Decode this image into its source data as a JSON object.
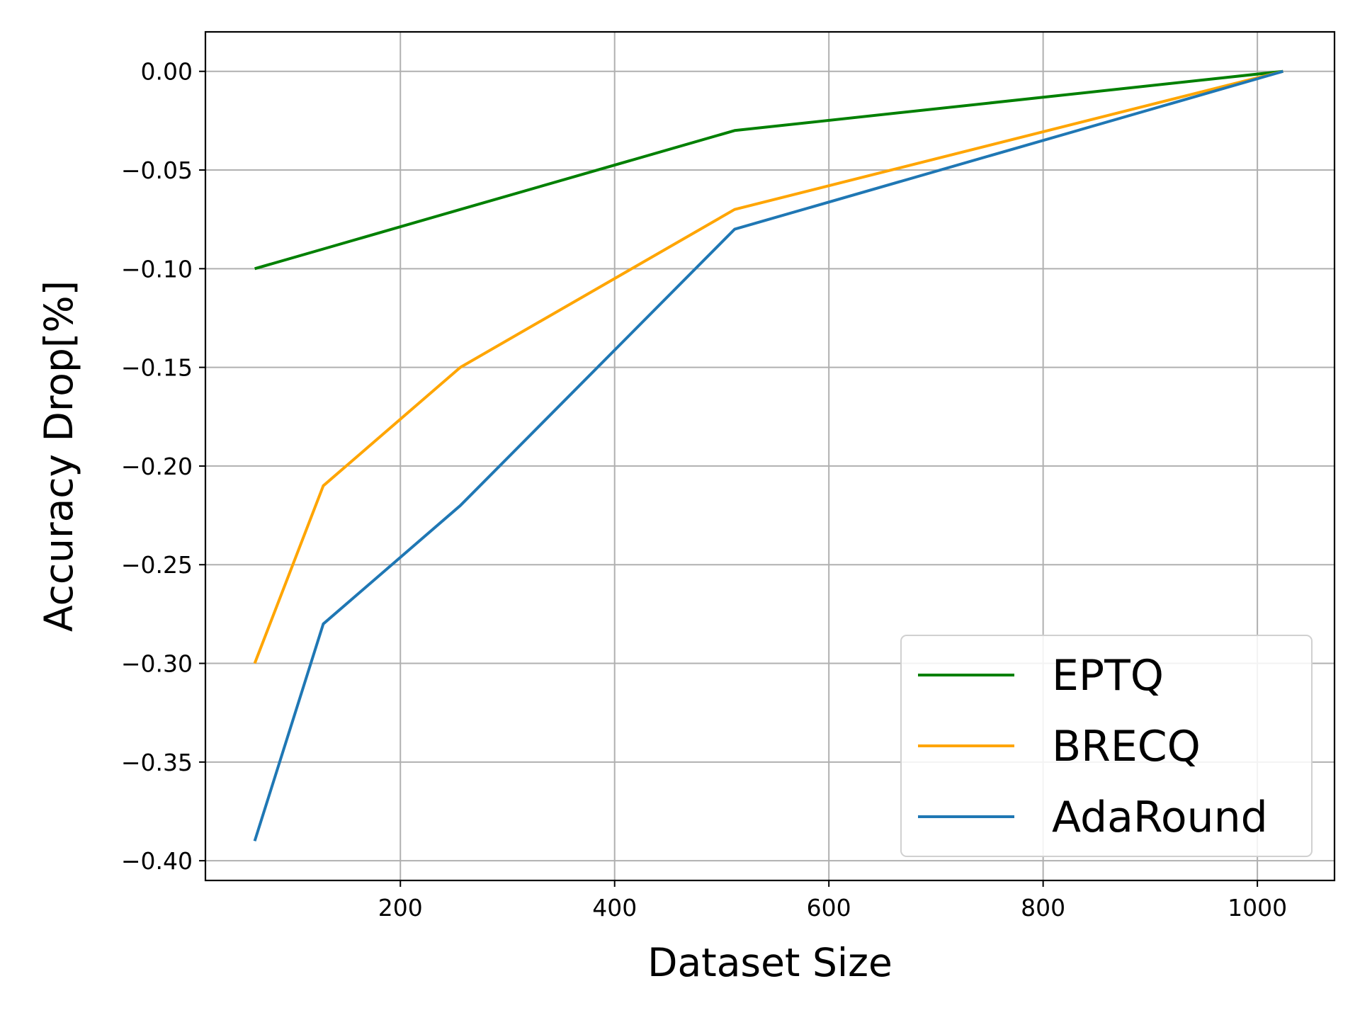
{
  "chart_data": {
    "type": "line",
    "title": "",
    "xlabel": "Dataset Size",
    "ylabel": "Accuracy Drop[%]",
    "xlim": [
      18,
      1072
    ],
    "ylim": [
      -0.41,
      0.02
    ],
    "xticks": [
      200,
      400,
      600,
      800,
      1000
    ],
    "xtick_labels": [
      "200",
      "400",
      "600",
      "800",
      "1000"
    ],
    "yticks": [
      0.0,
      -0.05,
      -0.1,
      -0.15,
      -0.2,
      -0.25,
      -0.3,
      -0.35,
      -0.4
    ],
    "ytick_labels": [
      "0.00",
      "−0.05",
      "−0.10",
      "−0.15",
      "−0.20",
      "−0.25",
      "−0.30",
      "−0.35",
      "−0.40"
    ],
    "grid": true,
    "legend_position": "lower-right",
    "x": [
      64,
      128,
      256,
      512,
      1024
    ],
    "series": [
      {
        "name": "EPTQ",
        "color": "#008000",
        "values": [
          -0.1,
          -0.09,
          -0.07,
          -0.03,
          0.0
        ]
      },
      {
        "name": "BRECQ",
        "color": "#ffa500",
        "values": [
          -0.3,
          -0.21,
          -0.15,
          -0.07,
          0.0
        ]
      },
      {
        "name": "AdaRound",
        "color": "#1f77b4",
        "values": [
          -0.39,
          -0.28,
          -0.22,
          -0.08,
          0.0
        ]
      }
    ]
  }
}
